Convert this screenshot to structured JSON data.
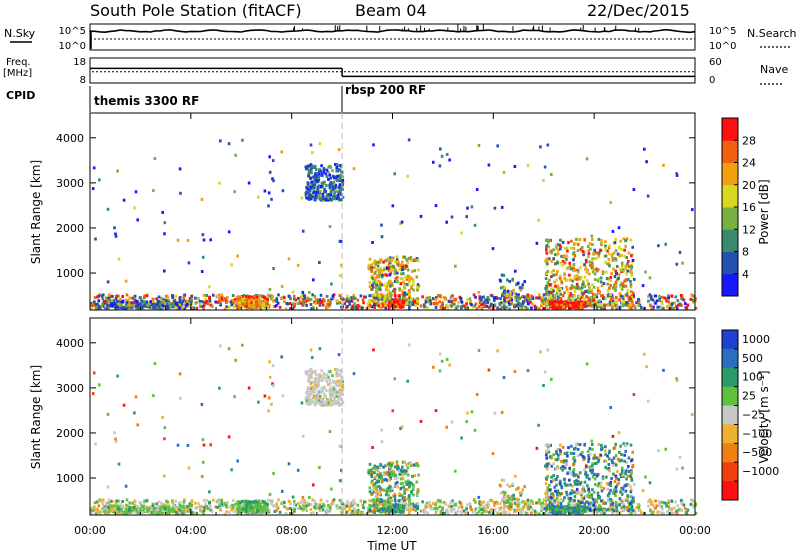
{
  "header": {
    "station": "South Pole Station (fitACF)",
    "beam": "Beam 04",
    "date": "22/Dec/2015"
  },
  "left_labels": {
    "nsky": "N.Sky",
    "freq": "Freq.",
    "mhz": "[MHz]",
    "cpid": "CPID"
  },
  "right_labels": {
    "nsearch": "N.Search",
    "nave": "Nave"
  },
  "cpid_segments": [
    {
      "label": "themis 3300 RF",
      "start_hour": 0
    },
    {
      "label": "rbsp 200 RF",
      "start_hour": 10
    }
  ],
  "chart_data": [
    {
      "type": "line",
      "name": "noise-panel",
      "series": [
        {
          "name": "N.Sky"
        },
        {
          "name": "N.Search"
        }
      ],
      "left_ticks": [
        "10^5",
        "10^0"
      ],
      "right_ticks": [
        "10^5",
        "10^0"
      ],
      "xlim_hours": [
        0,
        24
      ]
    },
    {
      "type": "line",
      "name": "freq-nave-panel",
      "series": [
        {
          "name": "Freq."
        },
        {
          "name": "Nave"
        }
      ],
      "left_ticks": [
        "18",
        "8"
      ],
      "right_ticks": [
        "60",
        "0"
      ],
      "ylim_left": [
        8,
        18
      ],
      "ylim_right": [
        0,
        60
      ],
      "freq_level": 12.5,
      "nave_segments": [
        {
          "start_hour": 0,
          "end_hour": 10,
          "value": 35
        },
        {
          "start_hour": 10,
          "end_hour": 24,
          "value": 16
        }
      ]
    },
    {
      "type": "heatmap",
      "name": "power",
      "ylabel": "Slant Range [km]",
      "ylim": [
        180,
        4550
      ],
      "yticks": [
        "1000",
        "2000",
        "3000",
        "4000"
      ],
      "xlim_hours": [
        0,
        24
      ],
      "xticks": [
        "00:00",
        "04:00",
        "08:00",
        "12:00",
        "16:00",
        "20:00",
        "00:00"
      ],
      "colorbar": {
        "label": "Power [dB]",
        "ticks": [
          "4",
          "8",
          "12",
          "16",
          "20",
          "24",
          "28"
        ],
        "colors": [
          "#1818ff",
          "#2450b0",
          "#3a8a70",
          "#78b040",
          "#d8d820",
          "#f0a010",
          "#f06010",
          "#ff1010"
        ]
      }
    },
    {
      "type": "heatmap",
      "name": "velocity",
      "ylabel": "Slant Range [km]",
      "ylim": [
        180,
        4550
      ],
      "yticks": [
        "1000",
        "2000",
        "3000",
        "4000"
      ],
      "xlim_hours": [
        0,
        24
      ],
      "xticks": [
        "00:00",
        "04:00",
        "08:00",
        "12:00",
        "16:00",
        "20:00",
        "00:00"
      ],
      "xlabel": "Time UT",
      "colorbar": {
        "label": "Velocity [m s⁻¹]",
        "ticks": [
          "1000",
          "500",
          "100",
          "25",
          "−25",
          "−100",
          "−500",
          "−1000"
        ],
        "colors": [
          "#2040d0",
          "#2a6ec0",
          "#2a9a6a",
          "#60c040",
          "#c8c8c8",
          "#f0b030",
          "#f08010",
          "#f04010",
          "#ff1010"
        ]
      }
    }
  ]
}
